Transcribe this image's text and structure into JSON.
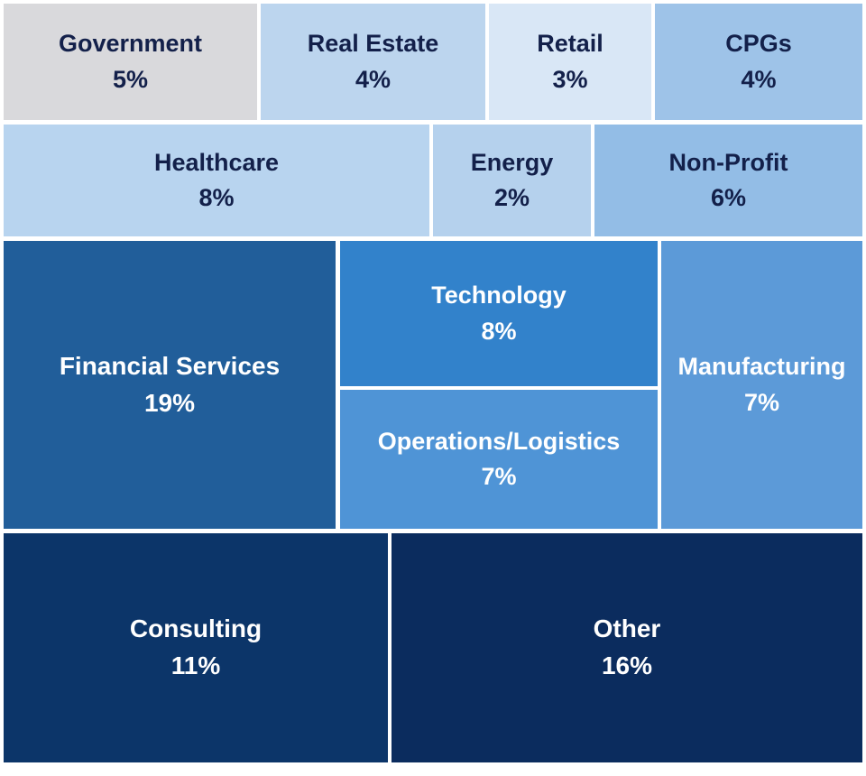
{
  "chart_data": {
    "type": "treemap",
    "unit": "%",
    "items": [
      {
        "name": "Government",
        "value": 5,
        "display": "5%",
        "color": "#d9d9dc",
        "text_color": "#13204a"
      },
      {
        "name": "Real Estate",
        "value": 4,
        "display": "4%",
        "color": "#bcd5ee",
        "text_color": "#13204a"
      },
      {
        "name": "Retail",
        "value": 3,
        "display": "3%",
        "color": "#d9e7f6",
        "text_color": "#13204a"
      },
      {
        "name": "CPGs",
        "value": 4,
        "display": "4%",
        "color": "#9ec3e8",
        "text_color": "#13204a"
      },
      {
        "name": "Healthcare",
        "value": 8,
        "display": "8%",
        "color": "#b8d4ef",
        "text_color": "#13204a"
      },
      {
        "name": "Energy",
        "value": 2,
        "display": "2%",
        "color": "#b5d1ed",
        "text_color": "#13204a"
      },
      {
        "name": "Non-Profit",
        "value": 6,
        "display": "6%",
        "color": "#93bde6",
        "text_color": "#13204a"
      },
      {
        "name": "Financial Services",
        "value": 19,
        "display": "19%",
        "color": "#215e9a",
        "text_color": "#ffffff"
      },
      {
        "name": "Technology",
        "value": 8,
        "display": "8%",
        "color": "#3282cb",
        "text_color": "#ffffff"
      },
      {
        "name": "Operations/Logistics",
        "value": 7,
        "display": "7%",
        "color": "#4f94d6",
        "text_color": "#ffffff"
      },
      {
        "name": "Manufacturing",
        "value": 7,
        "display": "7%",
        "color": "#5c9ad8",
        "text_color": "#ffffff"
      },
      {
        "name": "Consulting",
        "value": 11,
        "display": "11%",
        "color": "#0c3569",
        "text_color": "#ffffff"
      },
      {
        "name": "Other",
        "value": 16,
        "display": "16%",
        "color": "#0b2c5e",
        "text_color": "#ffffff"
      }
    ]
  }
}
